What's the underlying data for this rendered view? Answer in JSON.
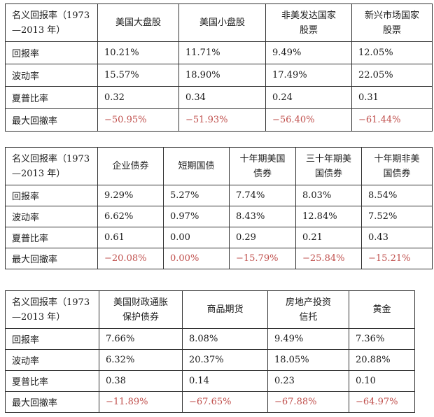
{
  "row_header_line1": "名义回报率（1973",
  "row_header_line2": "—2013 年）",
  "row_labels": [
    "回报率",
    "波动率",
    "夏普比率",
    "最大回撤率"
  ],
  "table1": {
    "columns": [
      [
        "美国大盘股"
      ],
      [
        "美国小盘股"
      ],
      [
        "非美发达国家",
        "股票"
      ],
      [
        "新兴市场国家",
        "股票"
      ]
    ],
    "rows": [
      [
        "10.21%",
        "11.71%",
        "9.49%",
        "12.05%"
      ],
      [
        "15.57%",
        "18.90%",
        "17.49%",
        "22.05%"
      ],
      [
        "0.32",
        "0.34",
        "0.24",
        "0.31"
      ],
      [
        "−50.95%",
        "−51.93%",
        "−56.40%",
        "−61.44%"
      ]
    ]
  },
  "table2": {
    "columns": [
      [
        "企业债券"
      ],
      [
        "短期国债"
      ],
      [
        "十年期美国",
        "债券"
      ],
      [
        "三十年期美",
        "国债券"
      ],
      [
        "十年期非美",
        "国债券"
      ]
    ],
    "rows": [
      [
        "9.29%",
        "5.27%",
        "7.74%",
        "8.03%",
        "8.54%"
      ],
      [
        "6.62%",
        "0.97%",
        "8.43%",
        "12.84%",
        "7.52%"
      ],
      [
        "0.61",
        "0.00",
        "0.29",
        "0.21",
        "0.43"
      ],
      [
        "−20.08%",
        "0.00%",
        "−15.79%",
        "−25.84%",
        "−15.21%"
      ]
    ]
  },
  "table3": {
    "columns": [
      [
        "美国财政通胀",
        "保护债券"
      ],
      [
        "商品期货"
      ],
      [
        "房地产投资",
        "信托"
      ],
      [
        "黄金"
      ]
    ],
    "rows": [
      [
        "7.66%",
        "8.08%",
        "9.49%",
        "7.36%"
      ],
      [
        "6.32%",
        "20.37%",
        "18.05%",
        "20.88%"
      ],
      [
        "0.38",
        "0.14",
        "0.23",
        "0.10"
      ],
      [
        "−11.89%",
        "−67.65%",
        "−67.88%",
        "−64.97%"
      ]
    ]
  },
  "colors": {
    "negative": "#c0504d",
    "text": "#1a1a1a",
    "border": "#333333"
  }
}
